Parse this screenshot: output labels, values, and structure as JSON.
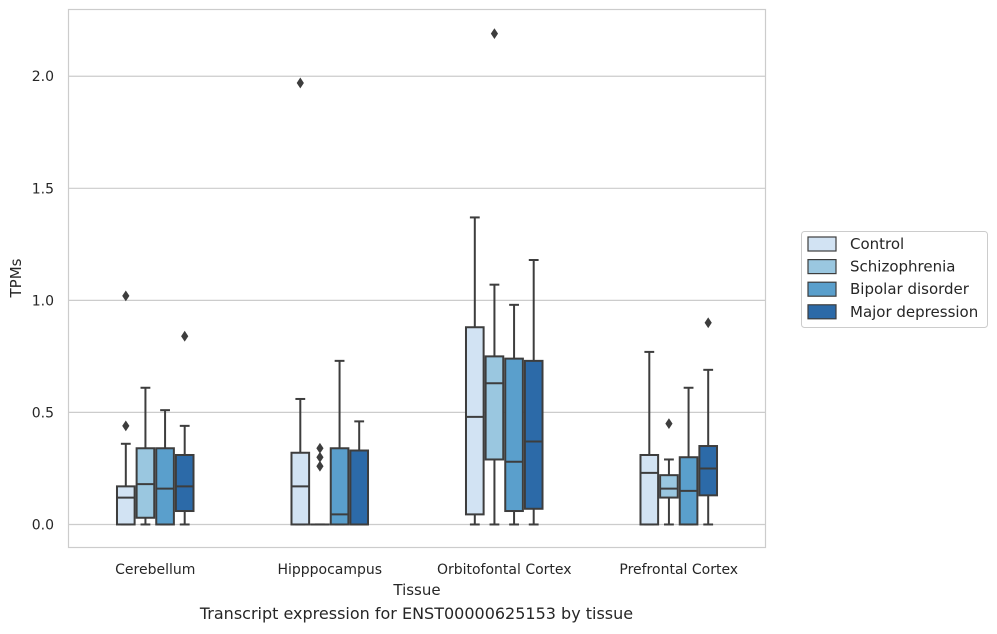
{
  "caption": "Transcript expression for ENST00000625153 by tissue",
  "chart_data": {
    "type": "box",
    "xlabel": "Tissue",
    "ylabel": "TPMs",
    "ylim": [
      -0.105,
      2.3
    ],
    "yticks": [
      0.0,
      0.5,
      1.0,
      1.5,
      2.0
    ],
    "ytick_labels": [
      "0.0",
      "0.5",
      "1.0",
      "1.5",
      "2.0"
    ],
    "grid": "horizontal",
    "legend_position": "right",
    "categories": [
      "Cerebellum",
      "Hipppocampus",
      "Orbitofontal Cortex",
      "Prefrontal Cortex"
    ],
    "series": [
      {
        "name": "Control",
        "color": "#d2e3f3",
        "boxes": [
          {
            "whislo": 0.0,
            "q1": 0.0,
            "med": 0.12,
            "q3": 0.17,
            "whishi": 0.36,
            "fliers": [
              0.44,
              1.02
            ]
          },
          {
            "whislo": 0.0,
            "q1": 0.0,
            "med": 0.17,
            "q3": 0.32,
            "whishi": 0.56,
            "fliers": [
              1.97
            ]
          },
          {
            "whislo": 0.0,
            "q1": 0.045,
            "med": 0.48,
            "q3": 0.88,
            "whishi": 1.37,
            "fliers": []
          },
          {
            "whislo": 0.0,
            "q1": 0.0,
            "med": 0.23,
            "q3": 0.31,
            "whishi": 0.77,
            "fliers": []
          }
        ]
      },
      {
        "name": "Schizophrenia",
        "color": "#9ac7e0",
        "boxes": [
          {
            "whislo": 0.0,
            "q1": 0.03,
            "med": 0.18,
            "q3": 0.34,
            "whishi": 0.61,
            "fliers": []
          },
          {
            "whislo": 0.0,
            "q1": 0.0,
            "med": 0.0,
            "q3": 0.0,
            "whishi": 0.0,
            "fliers": [
              0.26,
              0.3,
              0.34
            ]
          },
          {
            "whislo": 0.0,
            "q1": 0.29,
            "med": 0.63,
            "q3": 0.75,
            "whishi": 1.07,
            "fliers": [
              2.19
            ]
          },
          {
            "whislo": 0.0,
            "q1": 0.12,
            "med": 0.16,
            "q3": 0.22,
            "whishi": 0.29,
            "fliers": [
              0.45
            ]
          }
        ]
      },
      {
        "name": "Bipolar disorder",
        "color": "#5a9fcc",
        "boxes": [
          {
            "whislo": 0.0,
            "q1": 0.0,
            "med": 0.16,
            "q3": 0.34,
            "whishi": 0.51,
            "fliers": []
          },
          {
            "whislo": 0.0,
            "q1": 0.0,
            "med": 0.045,
            "q3": 0.34,
            "whishi": 0.73,
            "fliers": []
          },
          {
            "whislo": 0.0,
            "q1": 0.06,
            "med": 0.28,
            "q3": 0.74,
            "whishi": 0.98,
            "fliers": []
          },
          {
            "whislo": 0.0,
            "q1": 0.0,
            "med": 0.15,
            "q3": 0.3,
            "whishi": 0.61,
            "fliers": []
          }
        ]
      },
      {
        "name": "Major depression",
        "color": "#2c6aa8",
        "boxes": [
          {
            "whislo": 0.0,
            "q1": 0.06,
            "med": 0.17,
            "q3": 0.31,
            "whishi": 0.44,
            "fliers": [
              0.84
            ]
          },
          {
            "whislo": 0.0,
            "q1": 0.0,
            "med": 0.0,
            "q3": 0.33,
            "whishi": 0.46,
            "fliers": []
          },
          {
            "whislo": 0.0,
            "q1": 0.07,
            "med": 0.37,
            "q3": 0.73,
            "whishi": 1.18,
            "fliers": []
          },
          {
            "whislo": 0.0,
            "q1": 0.13,
            "med": 0.25,
            "q3": 0.35,
            "whishi": 0.69,
            "fliers": [
              0.9
            ]
          }
        ]
      }
    ]
  }
}
